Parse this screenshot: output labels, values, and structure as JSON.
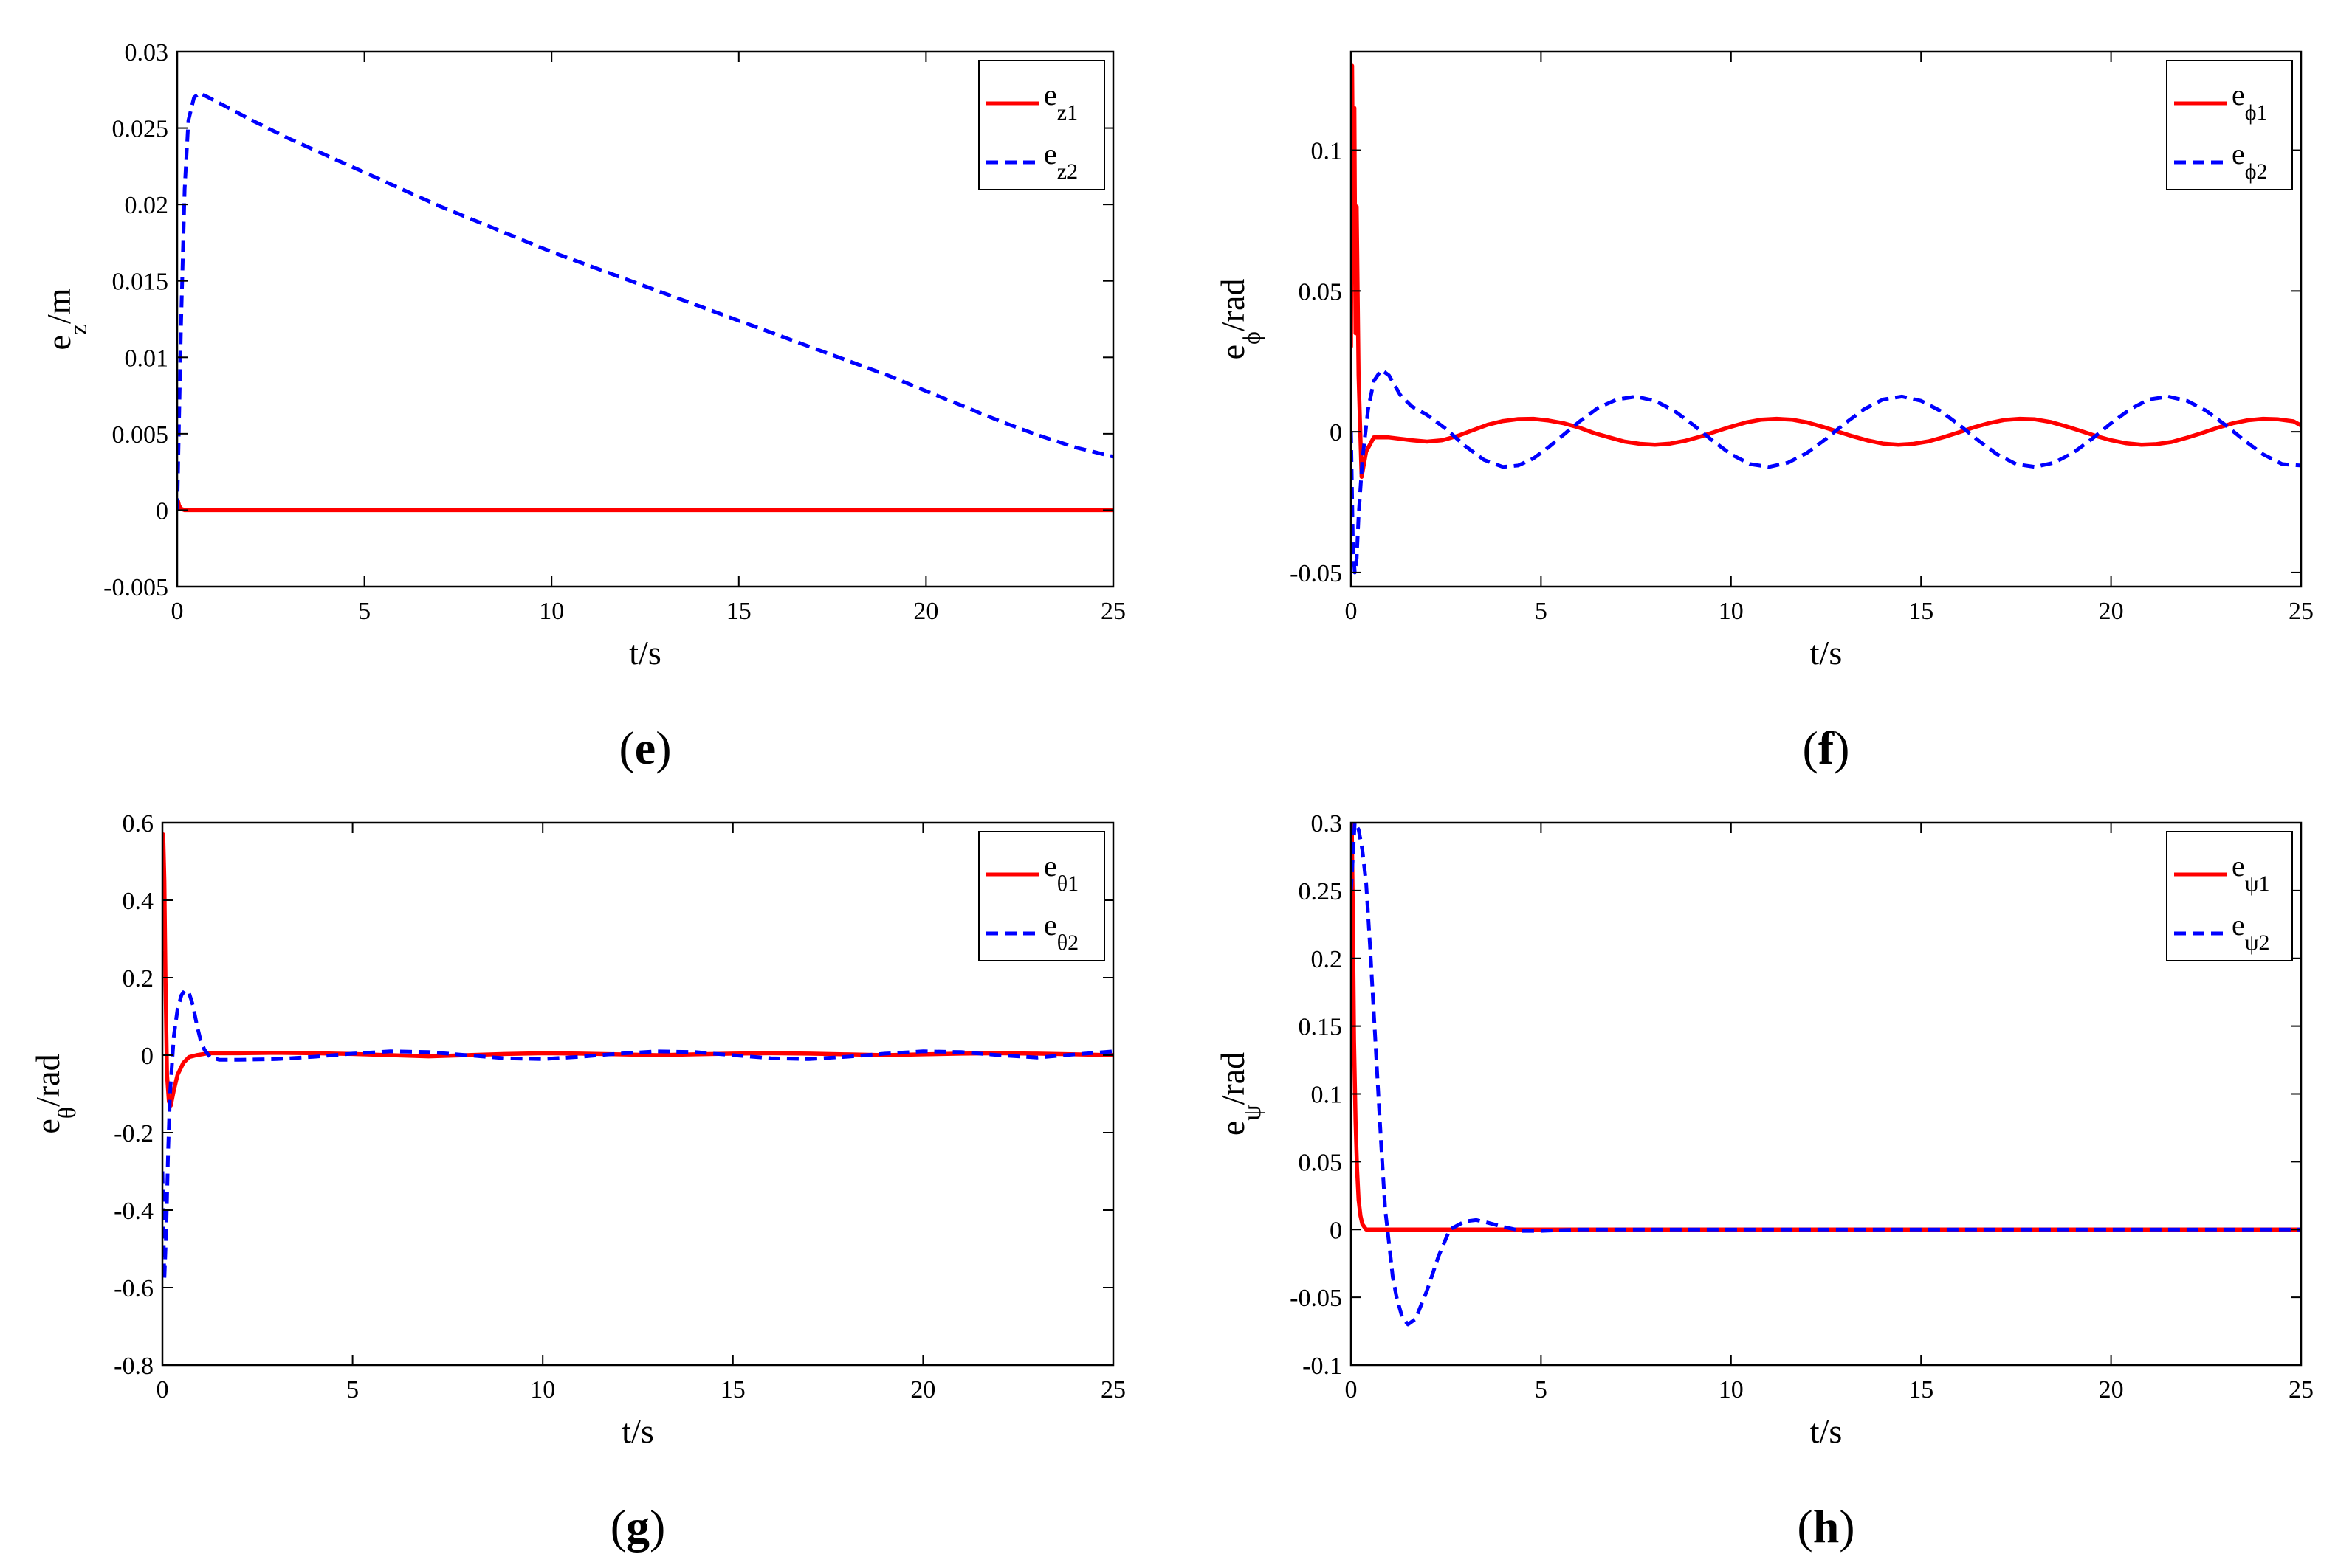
{
  "chart_data": [
    {
      "type": "line",
      "panel_label": "e",
      "xlabel": "t/s",
      "ylabel_main": "e",
      "ylabel_sub": "z",
      "ylabel_unit": "/m",
      "xlim": [
        0,
        25
      ],
      "ylim": [
        -0.005,
        0.03
      ],
      "xticks": [
        0,
        5,
        10,
        15,
        20,
        25
      ],
      "xtick_labels": [
        "0",
        "5",
        "10",
        "15",
        "20",
        "25"
      ],
      "yticks": [
        -0.005,
        0,
        0.005,
        0.01,
        0.015,
        0.02,
        0.025,
        0.03
      ],
      "ytick_labels": [
        "-0.005",
        "0",
        "0.005",
        "0.01",
        "0.015",
        "0.02",
        "0.025",
        "0.03"
      ],
      "legend": "top-right",
      "series": [
        {
          "name": "e_z1",
          "legend_main": "e",
          "legend_sub": "z1",
          "color": "#ff0000",
          "style": "solid",
          "x": [
            0,
            0.02,
            0.05,
            0.1,
            0.2,
            0.4,
            25
          ],
          "y": [
            0.0007,
            0.0006,
            0.0003,
            0.0001,
            0.0,
            0.0,
            0.0
          ]
        },
        {
          "name": "e_z2",
          "legend_main": "e",
          "legend_sub": "z2",
          "color": "#0000ff",
          "style": "dashed",
          "x": [
            0,
            0.1,
            0.2,
            0.3,
            0.45,
            0.6,
            1,
            2,
            3,
            4,
            5,
            6,
            7,
            8,
            9,
            10,
            11,
            12,
            13,
            14,
            15,
            16,
            17,
            18,
            19,
            20,
            21,
            22,
            23,
            24,
            25
          ],
          "y": [
            0.0,
            0.012,
            0.021,
            0.0255,
            0.027,
            0.0273,
            0.0268,
            0.0255,
            0.0243,
            0.0232,
            0.0221,
            0.021,
            0.0199,
            0.0189,
            0.0179,
            0.0169,
            0.016,
            0.0151,
            0.0142,
            0.0133,
            0.0124,
            0.0115,
            0.0106,
            0.0097,
            0.0088,
            0.0078,
            0.0068,
            0.0058,
            0.0049,
            0.0041,
            0.0035
          ]
        }
      ]
    },
    {
      "type": "line",
      "panel_label": "f",
      "xlabel": "t/s",
      "ylabel_main": "e",
      "ylabel_sub": "ϕ",
      "ylabel_unit": "/rad",
      "xlim": [
        0,
        25
      ],
      "ylim": [
        -0.055,
        0.135
      ],
      "xticks": [
        0,
        5,
        10,
        15,
        20,
        25
      ],
      "xtick_labels": [
        "0",
        "5",
        "10",
        "15",
        "20",
        "25"
      ],
      "yticks": [
        -0.05,
        0,
        0.05,
        0.1
      ],
      "ytick_labels": [
        "-0.05",
        "0",
        "0.05",
        "0.1"
      ],
      "legend": "top-right",
      "series": [
        {
          "name": "e_phi1",
          "legend_main": "e",
          "legend_sub": "ϕ1",
          "color": "#ff0000",
          "style": "solid",
          "x": [
            0,
            0.03,
            0.06,
            0.09,
            0.12,
            0.15,
            0.2,
            0.28,
            0.4,
            0.6,
            0.8,
            1,
            1.3,
            1.6,
            2,
            2.4,
            2.8,
            3.2,
            3.6,
            4,
            4.4,
            4.8,
            5.2,
            5.6,
            6,
            6.4,
            6.8,
            7.2,
            7.6,
            8,
            8.4,
            8.8,
            9.2,
            9.6,
            10,
            10.4,
            10.8,
            11.2,
            11.6,
            12,
            12.4,
            12.8,
            13.2,
            13.6,
            14,
            14.4,
            14.8,
            15.2,
            15.6,
            16,
            16.4,
            16.8,
            17.2,
            17.6,
            18,
            18.4,
            18.8,
            19.2,
            19.6,
            20,
            20.4,
            20.8,
            21.2,
            21.6,
            22,
            22.4,
            22.8,
            23.2,
            23.6,
            24,
            24.4,
            24.8,
            25
          ],
          "y": [
            0.03,
            0.13,
            0.07,
            0.115,
            0.035,
            0.08,
            0.02,
            -0.016,
            -0.007,
            -0.002,
            -0.002,
            -0.002,
            -0.0025,
            -0.003,
            -0.0035,
            -0.003,
            -0.0015,
            0.0005,
            0.0025,
            0.0038,
            0.0045,
            0.0046,
            0.004,
            0.003,
            0.0015,
            -0.0005,
            -0.002,
            -0.0035,
            -0.0043,
            -0.0046,
            -0.0042,
            -0.0032,
            -0.0017,
            0.0001,
            0.0018,
            0.0033,
            0.0043,
            0.0046,
            0.0043,
            0.0033,
            0.0018,
            0.0001,
            -0.0016,
            -0.0031,
            -0.0042,
            -0.0046,
            -0.0043,
            -0.0034,
            -0.0019,
            -0.0002,
            0.0016,
            0.0031,
            0.0042,
            0.0046,
            0.0044,
            0.0035,
            0.002,
            0.0003,
            -0.0015,
            -0.003,
            -0.0041,
            -0.0046,
            -0.0044,
            -0.0036,
            -0.0021,
            -0.0004,
            0.0014,
            0.003,
            0.0041,
            0.0046,
            0.0044,
            0.0037,
            0.0022
          ]
        },
        {
          "name": "e_phi2",
          "legend_main": "e",
          "legend_sub": "ϕ2",
          "color": "#0000ff",
          "style": "dashed",
          "x": [
            0,
            0.05,
            0.1,
            0.15,
            0.2,
            0.3,
            0.45,
            0.6,
            0.8,
            1,
            1.3,
            1.6,
            2,
            2.5,
            3,
            3.5,
            4,
            4.4,
            4.8,
            5.2,
            5.6,
            6,
            6.5,
            7,
            7.5,
            8,
            8.5,
            9,
            9.5,
            10,
            10.5,
            11,
            11.5,
            12,
            12.5,
            13,
            13.5,
            14,
            14.5,
            15,
            15.5,
            16,
            16.5,
            17,
            17.5,
            18,
            18.5,
            19,
            19.5,
            20,
            20.5,
            21,
            21.5,
            22,
            22.5,
            23,
            23.5,
            24,
            24.5,
            25
          ],
          "y": [
            0.0,
            -0.04,
            -0.05,
            -0.045,
            -0.03,
            -0.01,
            0.008,
            0.018,
            0.022,
            0.02,
            0.013,
            0.009,
            0.006,
            0.001,
            -0.005,
            -0.01,
            -0.0125,
            -0.012,
            -0.0095,
            -0.0055,
            -0.001,
            0.0035,
            0.0085,
            0.0115,
            0.0125,
            0.011,
            0.0075,
            0.0025,
            -0.003,
            -0.008,
            -0.0115,
            -0.0125,
            -0.011,
            -0.0075,
            -0.0025,
            0.003,
            0.008,
            0.0115,
            0.0125,
            0.011,
            0.0075,
            0.0025,
            -0.003,
            -0.008,
            -0.0115,
            -0.0125,
            -0.011,
            -0.0075,
            -0.0025,
            0.003,
            0.008,
            0.0115,
            0.0125,
            0.011,
            0.0075,
            0.0025,
            -0.003,
            -0.008,
            -0.0115,
            -0.012
          ]
        }
      ]
    },
    {
      "type": "line",
      "panel_label": "g",
      "xlabel": "t/s",
      "ylabel_main": "e",
      "ylabel_sub": "θ",
      "ylabel_unit": "/rad",
      "xlim": [
        0,
        25
      ],
      "ylim": [
        -0.8,
        0.6
      ],
      "xticks": [
        0,
        5,
        10,
        15,
        20,
        25
      ],
      "xtick_labels": [
        "0",
        "5",
        "10",
        "15",
        "20",
        "25"
      ],
      "yticks": [
        -0.8,
        -0.6,
        -0.4,
        -0.2,
        0,
        0.2,
        0.4,
        0.6
      ],
      "ytick_labels": [
        "-0.8",
        "-0.6",
        "-0.4",
        "-0.2",
        "0",
        "0.2",
        "0.4",
        "0.6"
      ],
      "legend": "top-right",
      "series": [
        {
          "name": "e_theta1",
          "legend_main": "e",
          "legend_sub": "θ1",
          "color": "#ff0000",
          "style": "solid",
          "x": [
            0,
            0.02,
            0.05,
            0.08,
            0.12,
            0.17,
            0.22,
            0.3,
            0.4,
            0.55,
            0.7,
            0.9,
            1.2,
            2,
            3,
            4,
            5,
            6,
            7,
            8,
            9,
            10,
            11,
            12,
            13,
            14,
            15,
            16,
            17,
            18,
            19,
            20,
            21,
            22,
            23,
            24,
            25
          ],
          "y": [
            0.27,
            0.57,
            0.45,
            0.2,
            -0.05,
            -0.12,
            -0.13,
            -0.09,
            -0.05,
            -0.02,
            -0.005,
            0.0,
            0.005,
            0.005,
            0.006,
            0.005,
            0.003,
            0.0,
            -0.003,
            0.0,
            0.003,
            0.005,
            0.004,
            0.002,
            0.0,
            0.002,
            0.004,
            0.005,
            0.004,
            0.002,
            0.0,
            0.002,
            0.004,
            0.005,
            0.004,
            0.002,
            0.0
          ]
        },
        {
          "name": "e_theta2",
          "legend_main": "e",
          "legend_sub": "θ2",
          "color": "#0000ff",
          "style": "dashed",
          "x": [
            0,
            0.05,
            0.1,
            0.15,
            0.2,
            0.3,
            0.4,
            0.5,
            0.6,
            0.7,
            0.8,
            0.9,
            1,
            1.1,
            1.25,
            1.5,
            2,
            3,
            4,
            5,
            6,
            7,
            8,
            9,
            10,
            11,
            12,
            13,
            14,
            15,
            16,
            17,
            18,
            19,
            20,
            21,
            22,
            23,
            24,
            25
          ],
          "y": [
            -0.3,
            -0.58,
            -0.45,
            -0.25,
            -0.1,
            0.05,
            0.12,
            0.155,
            0.168,
            0.16,
            0.13,
            0.08,
            0.04,
            0.015,
            -0.005,
            -0.012,
            -0.012,
            -0.01,
            -0.004,
            0.004,
            0.01,
            0.008,
            0.0,
            -0.008,
            -0.01,
            -0.004,
            0.004,
            0.01,
            0.008,
            0.0,
            -0.008,
            -0.01,
            -0.004,
            0.004,
            0.01,
            0.008,
            0.0,
            -0.006,
            0.002,
            0.01
          ]
        }
      ]
    },
    {
      "type": "line",
      "panel_label": "h",
      "xlabel": "t/s",
      "ylabel_main": "e",
      "ylabel_sub": "ψ",
      "ylabel_unit": "/rad",
      "xlim": [
        0,
        25
      ],
      "ylim": [
        -0.1,
        0.3
      ],
      "xticks": [
        0,
        5,
        10,
        15,
        20,
        25
      ],
      "xtick_labels": [
        "0",
        "5",
        "10",
        "15",
        "20",
        "25"
      ],
      "yticks": [
        -0.1,
        -0.05,
        0,
        0.05,
        0.1,
        0.15,
        0.2,
        0.25,
        0.3
      ],
      "ytick_labels": [
        "-0.1",
        "-0.05",
        "0",
        "0.05",
        "0.1",
        "0.15",
        "0.2",
        "0.25",
        "0.3"
      ],
      "legend": "top-right",
      "series": [
        {
          "name": "e_psi1",
          "legend_main": "e",
          "legend_sub": "ψ1",
          "color": "#ff0000",
          "style": "solid",
          "x": [
            0,
            0.02,
            0.05,
            0.08,
            0.12,
            0.16,
            0.2,
            0.25,
            0.3,
            0.4,
            25
          ],
          "y": [
            0.25,
            0.3,
            0.23,
            0.14,
            0.08,
            0.045,
            0.022,
            0.01,
            0.004,
            0.0,
            0.0
          ]
        },
        {
          "name": "e_psi2",
          "legend_main": "e",
          "legend_sub": "ψ2",
          "color": "#0000ff",
          "style": "dashed",
          "x": [
            0,
            0.1,
            0.2,
            0.3,
            0.4,
            0.5,
            0.6,
            0.7,
            0.8,
            0.9,
            1,
            1.1,
            1.2,
            1.35,
            1.5,
            1.7,
            2,
            2.3,
            2.6,
            3,
            3.3,
            3.6,
            4,
            4.5,
            5,
            6,
            25
          ],
          "y": [
            0.25,
            0.3,
            0.295,
            0.28,
            0.255,
            0.21,
            0.16,
            0.11,
            0.06,
            0.015,
            -0.01,
            -0.035,
            -0.05,
            -0.065,
            -0.07,
            -0.066,
            -0.045,
            -0.02,
            0.0,
            0.006,
            0.007,
            0.005,
            0.002,
            -0.001,
            -0.001,
            0.0,
            0.0
          ]
        }
      ]
    }
  ]
}
